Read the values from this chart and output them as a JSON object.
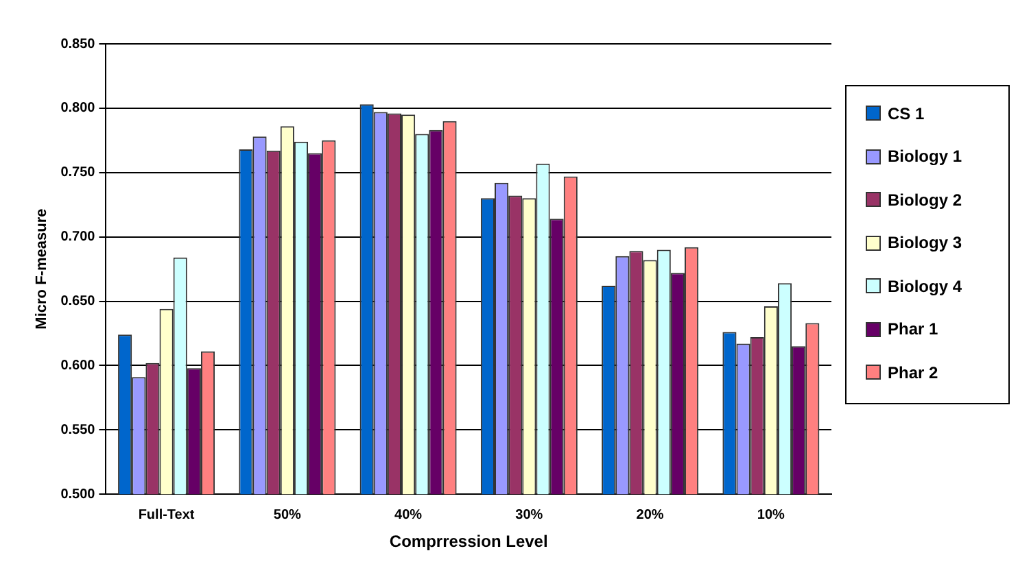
{
  "chart_data": {
    "type": "bar",
    "xlabel": "Comprression Level",
    "ylabel": "Micro F-measure",
    "categories": [
      "Full-Text",
      "50%",
      "40%",
      "30%",
      "20%",
      "10%"
    ],
    "series": [
      {
        "name": "CS 1",
        "color": "#0066cc",
        "values": [
          0.624,
          0.768,
          0.803,
          0.73,
          0.662,
          0.626
        ]
      },
      {
        "name": "Biology 1",
        "color": "#9999ff",
        "values": [
          0.591,
          0.778,
          0.797,
          0.742,
          0.685,
          0.617
        ]
      },
      {
        "name": "Biology 2",
        "color": "#993366",
        "values": [
          0.602,
          0.767,
          0.796,
          0.732,
          0.689,
          0.622
        ]
      },
      {
        "name": "Biology 3",
        "color": "#ffffcc",
        "values": [
          0.644,
          0.786,
          0.795,
          0.73,
          0.682,
          0.646
        ]
      },
      {
        "name": "Biology 4",
        "color": "#ccffff",
        "values": [
          0.684,
          0.774,
          0.78,
          0.757,
          0.69,
          0.664
        ]
      },
      {
        "name": "Phar 1",
        "color": "#660066",
        "values": [
          0.598,
          0.765,
          0.783,
          0.714,
          0.672,
          0.615
        ]
      },
      {
        "name": "Phar 2",
        "color": "#ff8080",
        "values": [
          0.611,
          0.775,
          0.79,
          0.747,
          0.692,
          0.633
        ]
      }
    ],
    "ylim": [
      0.5,
      0.85
    ],
    "yticks": [
      {
        "value": 0.5,
        "label": "0.500"
      },
      {
        "value": 0.55,
        "label": "0.550"
      },
      {
        "value": 0.6,
        "label": "0.600"
      },
      {
        "value": 0.65,
        "label": "0.650"
      },
      {
        "value": 0.7,
        "label": "0.700"
      },
      {
        "value": 0.75,
        "label": "0.750"
      },
      {
        "value": 0.8,
        "label": "0.800"
      },
      {
        "value": 0.85,
        "label": "0.850"
      }
    ],
    "grid": "y",
    "legend": "right"
  }
}
